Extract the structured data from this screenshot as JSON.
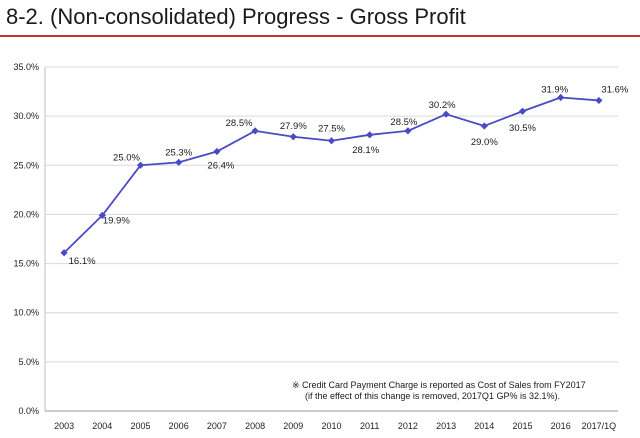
{
  "header": {
    "title": "8-2. (Non-consolidated) Progress - Gross Profit"
  },
  "colors": {
    "accent_rule": "#c0392b",
    "series_line": "#4a4bc4",
    "grid": "#d9d9d9"
  },
  "chart_data": {
    "type": "line",
    "title": "",
    "xlabel": "",
    "ylabel": "",
    "ylim": [
      0,
      35
    ],
    "yticks": [
      "0.0%",
      "5.0%",
      "10.0%",
      "15.0%",
      "20.0%",
      "25.0%",
      "30.0%",
      "35.0%"
    ],
    "grid": true,
    "legend": "none",
    "categories": [
      "2003",
      "2004",
      "2005",
      "2006",
      "2007",
      "2008",
      "2009",
      "2010",
      "2011",
      "2012",
      "2013",
      "2014",
      "2015",
      "2016",
      "2017/1Q"
    ],
    "series": [
      {
        "values": [
          16.1,
          19.9,
          25.0,
          25.3,
          26.4,
          28.5,
          27.9,
          27.5,
          28.1,
          28.5,
          30.2,
          29.0,
          30.5,
          31.9,
          31.6
        ],
        "labels": [
          "16.1%",
          "19.9%",
          "25.0%",
          "25.3%",
          "26.4%",
          "28.5%",
          "27.9%",
          "27.5%",
          "28.1%",
          "28.5%",
          "30.2%",
          "29.0%",
          "30.5%",
          "31.9%",
          "31.6%"
        ]
      }
    ],
    "annotation": {
      "line1": "※ Credit Card Payment Charge is reported as Cost of Sales from FY2017",
      "line2": "(if the effect of this change is removed, 2017Q1 GP% is 32.1%)."
    }
  }
}
